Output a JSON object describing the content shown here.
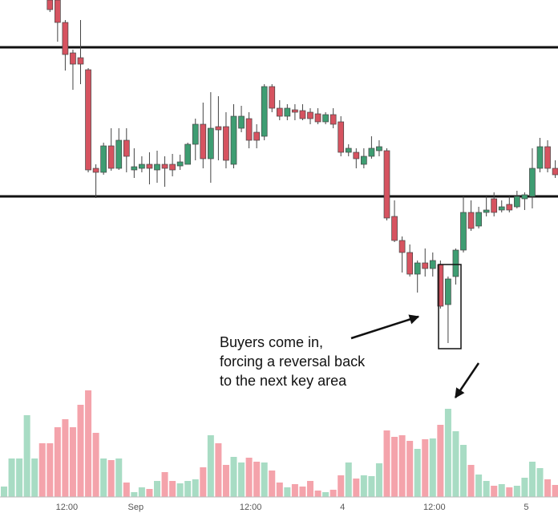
{
  "chart_data": {
    "type": "candlestick",
    "categories": [
      null,
      null,
      null,
      null,
      null,
      null,
      null,
      null,
      "12:00",
      null,
      null,
      null,
      null,
      null,
      null,
      null,
      null,
      "Sep",
      null,
      null,
      null,
      null,
      null,
      null,
      null,
      null,
      null,
      null,
      null,
      null,
      null,
      null,
      "12:00",
      null,
      null,
      null,
      null,
      null,
      null,
      null,
      null,
      null,
      null,
      null,
      "4",
      null,
      null,
      null,
      null,
      null,
      null,
      null,
      null,
      null,
      null,
      null,
      "12:00",
      null,
      null,
      null,
      null,
      null,
      null,
      null,
      null,
      null,
      null,
      null,
      "5",
      null,
      null,
      null,
      null
    ],
    "open": [
      null,
      null,
      null,
      null,
      null,
      null,
      620,
      620,
      592,
      554,
      548,
      533,
      410,
      405,
      438,
      410,
      445,
      408,
      410,
      415,
      408,
      415,
      415,
      413,
      415,
      440,
      465,
      422,
      462,
      462,
      415,
      460,
      472,
      455,
      450,
      512,
      485,
      475,
      483,
      482,
      480,
      478,
      468,
      477,
      468,
      430,
      430,
      415,
      425,
      432,
      432,
      350,
      320,
      305,
      278,
      292,
      285,
      290,
      240,
      275,
      308,
      355,
      338,
      355,
      372,
      358,
      365,
      362,
      372,
      375,
      410,
      437,
      410
    ],
    "high": [
      null,
      null,
      null,
      null,
      null,
      null,
      620,
      620,
      595,
      558,
      595,
      535,
      415,
      442,
      460,
      460,
      460,
      435,
      425,
      430,
      432,
      425,
      428,
      427,
      442,
      472,
      492,
      505,
      500,
      480,
      490,
      488,
      480,
      465,
      515,
      515,
      495,
      490,
      490,
      490,
      485,
      485,
      480,
      485,
      475,
      440,
      435,
      435,
      450,
      445,
      435,
      370,
      325,
      315,
      295,
      310,
      305,
      295,
      275,
      310,
      375,
      370,
      362,
      375,
      380,
      370,
      375,
      382,
      380,
      435,
      448,
      445,
      420
    ],
    "low": [
      null,
      null,
      null,
      null,
      null,
      null,
      605,
      568,
      532,
      508,
      515,
      405,
      373,
      402,
      407,
      408,
      405,
      398,
      405,
      390,
      392,
      387,
      400,
      408,
      415,
      420,
      410,
      392,
      420,
      410,
      410,
      455,
      435,
      435,
      445,
      480,
      470,
      470,
      470,
      470,
      465,
      465,
      465,
      460,
      425,
      425,
      410,
      410,
      422,
      425,
      345,
      318,
      280,
      275,
      255,
      275,
      275,
      235,
      192,
      265,
      305,
      332,
      335,
      350,
      350,
      355,
      355,
      360,
      358,
      360,
      405,
      405,
      398
    ],
    "close": [
      null,
      null,
      null,
      null,
      null,
      null,
      608,
      592,
      552,
      540,
      540,
      408,
      405,
      438,
      410,
      445,
      425,
      412,
      415,
      410,
      415,
      410,
      408,
      418,
      440,
      465,
      422,
      460,
      458,
      420,
      475,
      475,
      445,
      445,
      512,
      485,
      475,
      485,
      480,
      472,
      472,
      468,
      477,
      465,
      430,
      435,
      422,
      425,
      435,
      437,
      348,
      320,
      305,
      278,
      292,
      285,
      295,
      238,
      272,
      308,
      355,
      335,
      355,
      358,
      355,
      362,
      358,
      375,
      377,
      410,
      437,
      410,
      402
    ],
    "volume": [
      13,
      48,
      48,
      102,
      48,
      67,
      67,
      87,
      97,
      87,
      115,
      133,
      80,
      48,
      46,
      48,
      18,
      6,
      12,
      10,
      20,
      31,
      20,
      17,
      20,
      22,
      37,
      77,
      67,
      40,
      50,
      43,
      49,
      44,
      43,
      33,
      18,
      12,
      16,
      13,
      20,
      8,
      6,
      9,
      27,
      43,
      23,
      27,
      26,
      42,
      83,
      75,
      77,
      70,
      60,
      72,
      73,
      90,
      110,
      82,
      65,
      40,
      28,
      20,
      14,
      16,
      12,
      14,
      24,
      44,
      36,
      22,
      15
    ],
    "volume_colors": [
      "#a8dcc4",
      "#a8dcc4",
      "#a8dcc4",
      "#a8dcc4",
      "#a8dcc4",
      "#f4a3ab",
      "#f4a3ab",
      "#f4a3ab",
      "#f4a3ab",
      "#f4a3ab",
      "#f4a3ab",
      "#f4a3ab",
      "#f4a3ab",
      "#a8dcc4",
      "#f4a3ab",
      "#a8dcc4",
      "#f4a3ab",
      "#a8dcc4",
      "#a8dcc4",
      "#f4a3ab",
      "#a8dcc4",
      "#f4a3ab",
      "#f4a3ab",
      "#a8dcc4",
      "#a8dcc4",
      "#a8dcc4",
      "#f4a3ab",
      "#a8dcc4",
      "#f4a3ab",
      "#f4a3ab",
      "#a8dcc4",
      "#a8dcc4",
      "#f4a3ab",
      "#f4a3ab",
      "#a8dcc4",
      "#f4a3ab",
      "#f4a3ab",
      "#a8dcc4",
      "#f4a3ab",
      "#f4a3ab",
      "#f4a3ab",
      "#f4a3ab",
      "#a8dcc4",
      "#f4a3ab",
      "#f4a3ab",
      "#a8dcc4",
      "#f4a3ab",
      "#a8dcc4",
      "#a8dcc4",
      "#a8dcc4",
      "#f4a3ab",
      "#f4a3ab",
      "#f4a3ab",
      "#f4a3ab",
      "#a8dcc4",
      "#f4a3ab",
      "#a8dcc4",
      "#f4a3ab",
      "#a8dcc4",
      "#a8dcc4",
      "#a8dcc4",
      "#f4a3ab",
      "#a8dcc4",
      "#a8dcc4",
      "#f4a3ab",
      "#a8dcc4",
      "#f4a3ab",
      "#a8dcc4",
      "#a8dcc4",
      "#a8dcc4",
      "#a8dcc4",
      "#f4a3ab",
      "#f4a3ab"
    ],
    "up_color": "#3e9d72",
    "down_color": "#d65360",
    "ylim": [
      0,
      620
    ],
    "volume_lim": [
      0,
      250
    ],
    "levels": [
      561,
      375
    ],
    "annotation": [
      "Buyers come in,",
      "forcing a reversal back",
      "to the next key area"
    ]
  }
}
